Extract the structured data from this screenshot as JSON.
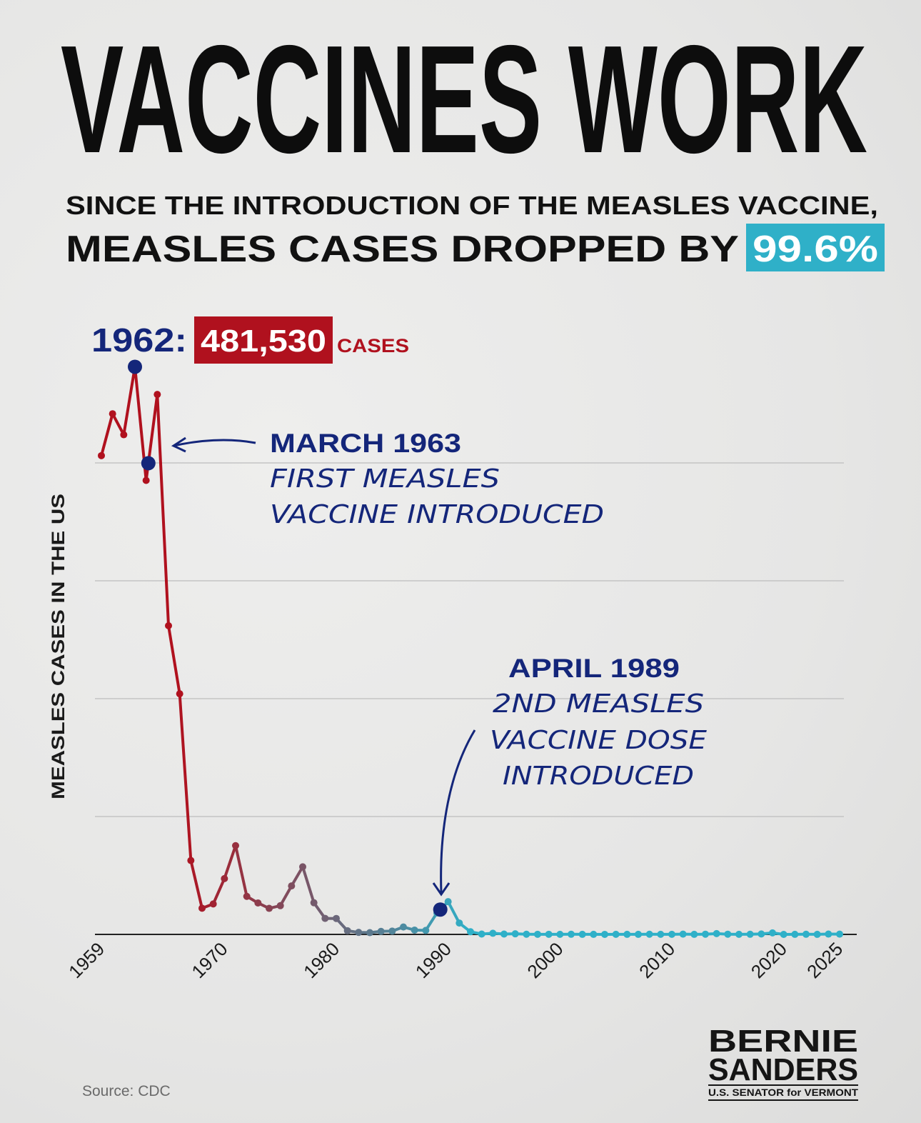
{
  "header": {
    "title": "VACCINES WORK",
    "subtitle_line1": "SINCE THE INTRODUCTION OF THE MEASLES VACCINE,",
    "subtitle_line2": "MEASLES CASES DROPPED BY",
    "highlight": "99.6%"
  },
  "colors": {
    "navy": "#14267a",
    "red": "#b0111e",
    "teal": "#2fb0c8",
    "text": "#0d0d0d"
  },
  "annotations": {
    "peak_year": "1962:",
    "peak_value": "481,530",
    "peak_unit": "CASES",
    "first_title": "MARCH 1963",
    "first_line1": "FIRST MEASLES",
    "first_line2": "VACCINE INTRODUCED",
    "second_title": "APRIL 1989",
    "second_line1": "2ND MEASLES",
    "second_line2": "VACCINE DOSE",
    "second_line3": "INTRODUCED"
  },
  "footer": {
    "source": "Source: CDC",
    "logo_line1": "BERNIE",
    "logo_line2": "SANDERS",
    "logo_line3": "U.S. SENATOR for VERMONT"
  },
  "chart_data": {
    "type": "line",
    "title": "VACCINES WORK",
    "xlabel": "",
    "ylabel": "MEASLES CASES IN THE US",
    "xlim": [
      1959,
      2025
    ],
    "ylim": [
      0,
      500000
    ],
    "grid": true,
    "x_ticks": [
      "1959",
      "1970",
      "1980",
      "1990",
      "2000",
      "2010",
      "2020",
      "2025"
    ],
    "x": [
      1959,
      1960,
      1961,
      1962,
      1963,
      1964,
      1965,
      1966,
      1967,
      1968,
      1969,
      1970,
      1971,
      1972,
      1973,
      1974,
      1975,
      1976,
      1977,
      1978,
      1979,
      1980,
      1981,
      1982,
      1983,
      1984,
      1985,
      1986,
      1987,
      1988,
      1989,
      1990,
      1991,
      1992,
      1993,
      1994,
      1995,
      1996,
      1997,
      1998,
      1999,
      2000,
      2001,
      2002,
      2003,
      2004,
      2005,
      2006,
      2007,
      2008,
      2009,
      2010,
      2011,
      2012,
      2013,
      2014,
      2015,
      2016,
      2017,
      2018,
      2019,
      2020,
      2021,
      2022,
      2023,
      2024,
      2025
    ],
    "values": [
      406162,
      441703,
      423919,
      481530,
      385156,
      458083,
      261904,
      204136,
      62705,
      22231,
      25826,
      47351,
      75290,
      32275,
      26690,
      22094,
      24374,
      41126,
      57345,
      26871,
      13597,
      13506,
      3124,
      1714,
      1497,
      2587,
      2822,
      6282,
      3655,
      3396,
      18193,
      27786,
      9643,
      2237,
      312,
      963,
      309,
      508,
      138,
      100,
      100,
      86,
      116,
      44,
      56,
      37,
      66,
      55,
      43,
      140,
      71,
      63,
      220,
      55,
      187,
      667,
      188,
      86,
      120,
      375,
      1274,
      13,
      49,
      121,
      59,
      285,
      222
    ],
    "highlighted_points": [
      {
        "x": 1962,
        "label": "1962: 481,530 CASES"
      },
      {
        "x": 1963.2,
        "label": "MARCH 1963 FIRST MEASLES VACCINE INTRODUCED"
      },
      {
        "x": 1989.3,
        "label": "APRIL 1989 2ND MEASLES VACCINE DOSE INTRODUCED"
      }
    ]
  }
}
